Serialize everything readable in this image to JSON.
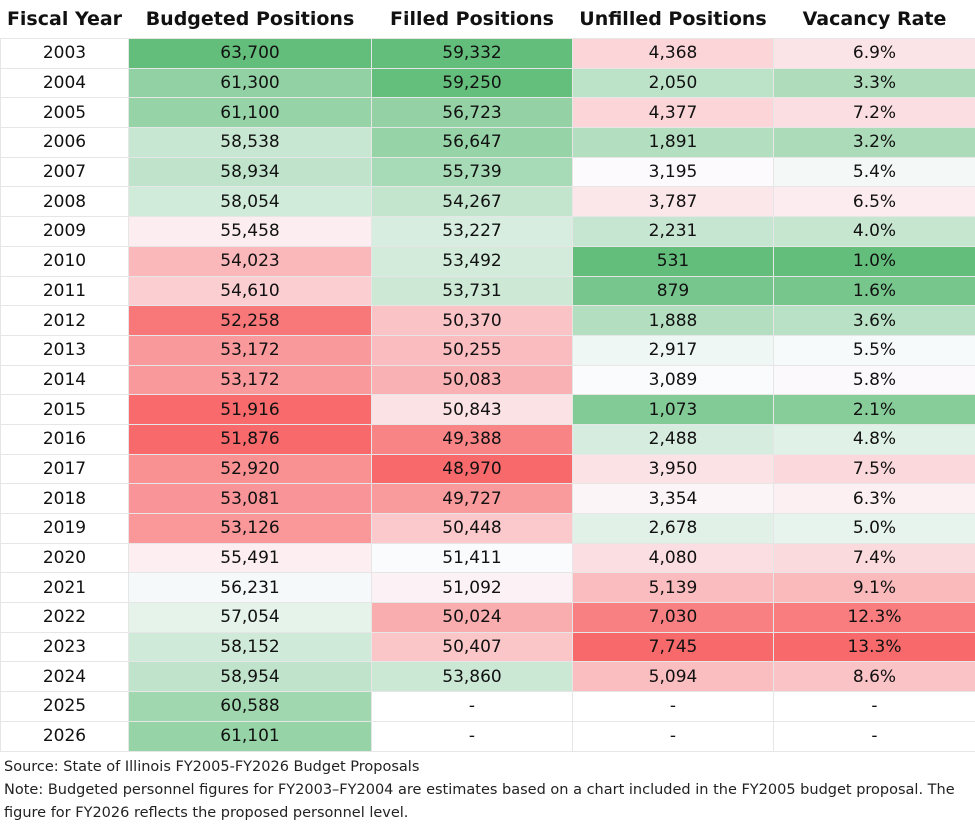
{
  "colors": {
    "good": "#63be7b",
    "neutral": "#fcfcff",
    "bad": "#f8696b"
  },
  "chart_data": {
    "type": "table",
    "columns": [
      "Fiscal Year",
      "Budgeted Positions",
      "Filled Positions",
      "Unfilled Positions",
      "Vacancy Rate"
    ],
    "rows": [
      [
        "2003",
        "63,700",
        "59,332",
        "4,368",
        "6.9%"
      ],
      [
        "2004",
        "61,300",
        "59,250",
        "2,050",
        "3.3%"
      ],
      [
        "2005",
        "61,100",
        "56,723",
        "4,377",
        "7.2%"
      ],
      [
        "2006",
        "58,538",
        "56,647",
        "1,891",
        "3.2%"
      ],
      [
        "2007",
        "58,934",
        "55,739",
        "3,195",
        "5.4%"
      ],
      [
        "2008",
        "58,054",
        "54,267",
        "3,787",
        "6.5%"
      ],
      [
        "2009",
        "55,458",
        "53,227",
        "2,231",
        "4.0%"
      ],
      [
        "2010",
        "54,023",
        "53,492",
        "531",
        "1.0%"
      ],
      [
        "2011",
        "54,610",
        "53,731",
        "879",
        "1.6%"
      ],
      [
        "2012",
        "52,258",
        "50,370",
        "1,888",
        "3.6%"
      ],
      [
        "2013",
        "53,172",
        "50,255",
        "2,917",
        "5.5%"
      ],
      [
        "2014",
        "53,172",
        "50,083",
        "3,089",
        "5.8%"
      ],
      [
        "2015",
        "51,916",
        "50,843",
        "1,073",
        "2.1%"
      ],
      [
        "2016",
        "51,876",
        "49,388",
        "2,488",
        "4.8%"
      ],
      [
        "2017",
        "52,920",
        "48,970",
        "3,950",
        "7.5%"
      ],
      [
        "2018",
        "53,081",
        "49,727",
        "3,354",
        "6.3%"
      ],
      [
        "2019",
        "53,126",
        "50,448",
        "2,678",
        "5.0%"
      ],
      [
        "2020",
        "55,491",
        "51,411",
        "4,080",
        "7.4%"
      ],
      [
        "2021",
        "56,231",
        "51,092",
        "5,139",
        "9.1%"
      ],
      [
        "2022",
        "57,054",
        "50,024",
        "7,030",
        "12.3%"
      ],
      [
        "2023",
        "58,152",
        "50,407",
        "7,745",
        "13.3%"
      ],
      [
        "2024",
        "58,954",
        "53,860",
        "5,094",
        "8.6%"
      ],
      [
        "2025",
        "60,588",
        "-",
        "-",
        "-"
      ],
      [
        "2026",
        "61,101",
        "-",
        "-",
        "-"
      ]
    ]
  },
  "footer": {
    "source": "Source: State of Illinois FY2005-FY2026 Budget Proposals",
    "note": "Note: Budgeted personnel figures for FY2003–FY2004 are estimates based on a chart included in the FY2005 budget proposal. The figure for FY2026 reflects the proposed personnel level."
  }
}
